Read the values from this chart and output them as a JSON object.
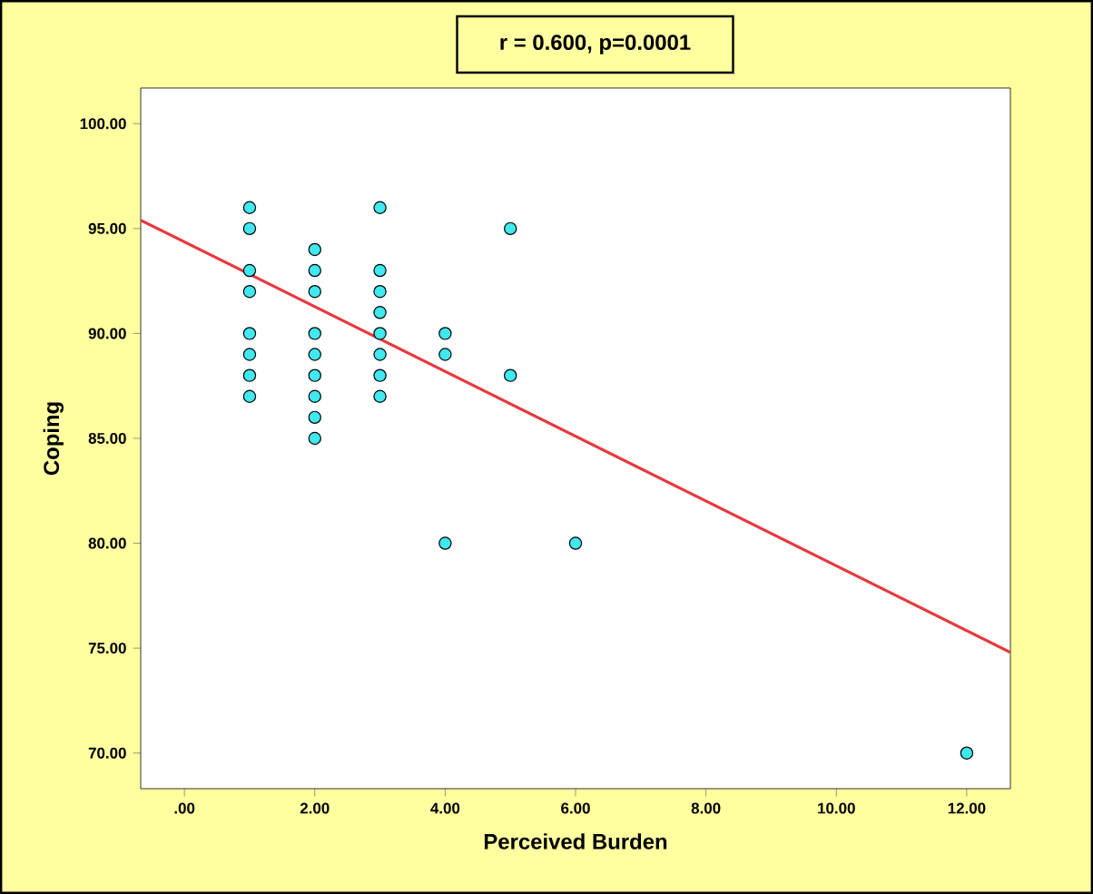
{
  "chart_data": {
    "type": "scatter",
    "title": "r = 0.600, p=0.0001",
    "xlabel": "Perceived Burden",
    "ylabel": "Coping",
    "xlim": [
      -0.67,
      12.67
    ],
    "ylim": [
      68.3,
      101.7
    ],
    "xticks": [
      {
        "value": 0,
        "label": ".00"
      },
      {
        "value": 2,
        "label": "2.00"
      },
      {
        "value": 4,
        "label": "4.00"
      },
      {
        "value": 6,
        "label": "6.00"
      },
      {
        "value": 8,
        "label": "8.00"
      },
      {
        "value": 10,
        "label": "10.00"
      },
      {
        "value": 12,
        "label": "12.00"
      }
    ],
    "yticks": [
      {
        "value": 70,
        "label": "70.00"
      },
      {
        "value": 75,
        "label": "75.00"
      },
      {
        "value": 80,
        "label": "80.00"
      },
      {
        "value": 85,
        "label": "85.00"
      },
      {
        "value": 90,
        "label": "90.00"
      },
      {
        "value": 95,
        "label": "95.00"
      },
      {
        "value": 100,
        "label": "100.00"
      }
    ],
    "grid": false,
    "series": [
      {
        "marker": "circle",
        "color": "#40e8f0",
        "x": [
          1,
          1,
          1,
          1,
          1,
          1,
          1,
          1,
          2,
          2,
          2,
          2,
          2,
          2,
          2,
          2,
          2,
          3,
          3,
          3,
          3,
          3,
          3,
          3,
          3,
          4,
          4,
          4,
          5,
          5,
          6,
          12
        ],
        "values": [
          96,
          95,
          93,
          92,
          90,
          89,
          88,
          87,
          94,
          93,
          92,
          90,
          89,
          88,
          87,
          86,
          85,
          96,
          93,
          92,
          91,
          90,
          89,
          88,
          87,
          90,
          89,
          80,
          95,
          88,
          80,
          70
        ]
      },
      {
        "type": "line",
        "marker": "none",
        "color": "#e8383d",
        "x": [
          -0.67,
          12.67
        ],
        "values": [
          95.4,
          74.8
        ]
      }
    ]
  }
}
